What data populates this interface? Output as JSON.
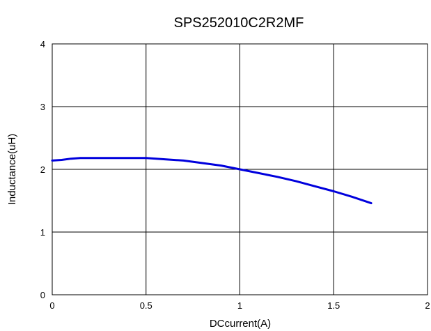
{
  "chart_data": {
    "type": "line",
    "title": "SPS252010C2R2MF",
    "xlabel": "DCcurrent(A)",
    "ylabel": "Inductance(uH)",
    "xlim": [
      0,
      2
    ],
    "ylim": [
      0,
      4
    ],
    "x_ticks": [
      "0",
      "0.5",
      "1",
      "1.5",
      "2"
    ],
    "y_ticks": [
      "0",
      "1",
      "2",
      "3",
      "4"
    ],
    "grid": true,
    "series": [
      {
        "color": "#0000dd",
        "x": [
          0,
          0.05,
          0.1,
          0.15,
          0.2,
          0.3,
          0.4,
          0.5,
          0.6,
          0.7,
          0.8,
          0.9,
          1.0,
          1.1,
          1.2,
          1.3,
          1.4,
          1.5,
          1.6,
          1.7
        ],
        "y": [
          2.14,
          2.15,
          2.17,
          2.18,
          2.18,
          2.18,
          2.18,
          2.18,
          2.16,
          2.14,
          2.1,
          2.06,
          2.0,
          1.94,
          1.88,
          1.81,
          1.73,
          1.65,
          1.56,
          1.46
        ]
      }
    ]
  }
}
